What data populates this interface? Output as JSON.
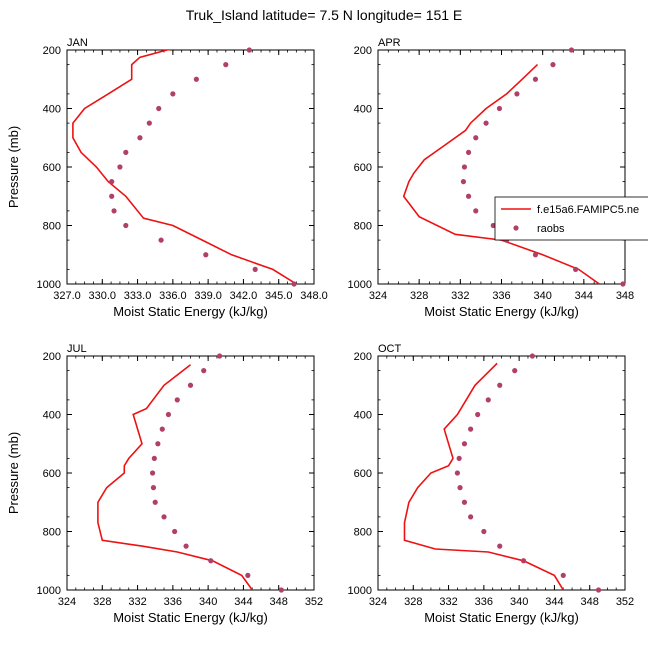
{
  "figure": {
    "title": "Truk_Island  latitude= 7.5 N longitude= 151 E",
    "xlabel": "Moist Static Energy (kJ/kg)",
    "ylabel": "Pressure (mb)",
    "legend": {
      "model_label": "f.e15a6.FAMIPC5.ne",
      "obs_label": "raobs",
      "placement": "APR panel, right edge"
    },
    "colors": {
      "model_line": "#ee1111",
      "obs_points": "#b0406a"
    }
  },
  "chart_data": [
    {
      "type": "line",
      "panel": "JAN",
      "xlim": [
        327.0,
        348.0
      ],
      "xticks": [
        "327.0",
        "330.0",
        "333.0",
        "336.0",
        "339.0",
        "342.0",
        "345.0",
        "348.0"
      ],
      "ylim": [
        1000,
        200
      ],
      "yticks": [
        "200",
        "400",
        "600",
        "800",
        "1000"
      ],
      "series": [
        {
          "name": "f.e15a6.FAMIPC5.ne",
          "style": "line",
          "x": [
            346.5,
            344.5,
            341.0,
            338.5,
            336.0,
            333.5,
            332.0,
            330.5,
            329.5,
            328.2,
            327.5,
            327.5,
            328.5,
            330.5,
            332.5,
            332.5,
            333.2,
            335.5,
            338.5
          ],
          "y": [
            1000,
            950,
            900,
            850,
            800,
            775,
            700,
            650,
            600,
            550,
            500,
            450,
            400,
            350,
            300,
            250,
            225,
            200,
            175
          ]
        },
        {
          "name": "raobs",
          "style": "points",
          "x": [
            346.3,
            343.0,
            338.8,
            335.0,
            332.0,
            331.0,
            330.8,
            330.8,
            331.5,
            332.0,
            333.2,
            334.0,
            334.8,
            336.0,
            338.0,
            340.5,
            342.5
          ],
          "y": [
            1000,
            950,
            900,
            850,
            800,
            750,
            700,
            650,
            600,
            550,
            500,
            450,
            400,
            350,
            300,
            250,
            200
          ]
        }
      ]
    },
    {
      "type": "line",
      "panel": "APR",
      "xlim": [
        324,
        348
      ],
      "xticks": [
        "324",
        "328",
        "332",
        "336",
        "340",
        "344",
        "348"
      ],
      "ylim": [
        1000,
        200
      ],
      "yticks": [
        "200",
        "400",
        "600",
        "800",
        "1000"
      ],
      "series": [
        {
          "name": "f.e15a6.FAMIPC5.ne",
          "style": "line",
          "x": [
            345.5,
            343.5,
            340.0,
            336.0,
            331.5,
            328.0,
            326.5,
            327.0,
            327.5,
            328.5,
            330.5,
            332.5,
            333.0,
            334.5,
            336.5,
            338.0,
            339.5
          ],
          "y": [
            1000,
            950,
            900,
            850,
            830,
            770,
            700,
            650,
            620,
            575,
            525,
            475,
            450,
            400,
            350,
            300,
            250
          ]
        },
        {
          "name": "raobs",
          "style": "points",
          "x": [
            347.8,
            343.2,
            339.3,
            336.5,
            335.2,
            333.5,
            332.8,
            332.3,
            332.4,
            332.8,
            333.5,
            334.5,
            335.8,
            337.5,
            339.3,
            341.0,
            342.8
          ],
          "y": [
            1000,
            950,
            900,
            850,
            800,
            750,
            700,
            650,
            600,
            550,
            500,
            450,
            400,
            350,
            300,
            250,
            200
          ]
        }
      ]
    },
    {
      "type": "line",
      "panel": "JUL",
      "xlim": [
        324,
        352
      ],
      "xticks": [
        "324",
        "328",
        "332",
        "336",
        "340",
        "344",
        "348",
        "352"
      ],
      "ylim": [
        1000,
        200
      ],
      "yticks": [
        "200",
        "400",
        "600",
        "800",
        "1000"
      ],
      "series": [
        {
          "name": "f.e15a6.FAMIPC5.ne",
          "style": "line",
          "x": [
            345.0,
            343.8,
            340.5,
            336.5,
            332.5,
            328.0,
            327.5,
            327.5,
            328.5,
            330.5,
            330.5,
            331.0,
            332.5,
            332.0,
            331.5,
            333.0,
            335.0,
            338.0
          ],
          "y": [
            1000,
            950,
            900,
            870,
            850,
            830,
            770,
            700,
            650,
            600,
            575,
            550,
            500,
            450,
            400,
            380,
            300,
            230
          ]
        },
        {
          "name": "raobs",
          "style": "points",
          "x": [
            348.3,
            344.5,
            340.3,
            337.5,
            336.2,
            335.0,
            334.0,
            333.8,
            333.7,
            333.9,
            334.3,
            334.8,
            335.5,
            336.5,
            338.0,
            339.5,
            341.3
          ],
          "y": [
            1000,
            950,
            900,
            850,
            800,
            750,
            700,
            650,
            600,
            550,
            500,
            450,
            400,
            350,
            300,
            250,
            200
          ]
        }
      ]
    },
    {
      "type": "line",
      "panel": "OCT",
      "xlim": [
        324,
        352
      ],
      "xticks": [
        "324",
        "328",
        "332",
        "336",
        "340",
        "344",
        "348",
        "352"
      ],
      "ylim": [
        1000,
        200
      ],
      "yticks": [
        "200",
        "400",
        "600",
        "800",
        "1000"
      ],
      "series": [
        {
          "name": "f.e15a6.FAMIPC5.ne",
          "style": "line",
          "x": [
            345.0,
            344.0,
            340.5,
            336.5,
            330.5,
            327.0,
            327.0,
            327.5,
            328.5,
            330.0,
            332.0,
            332.5,
            332.0,
            331.5,
            333.0,
            335.0,
            337.5
          ],
          "y": [
            1000,
            950,
            900,
            870,
            860,
            830,
            770,
            700,
            650,
            600,
            575,
            550,
            500,
            450,
            400,
            300,
            225
          ]
        },
        {
          "name": "raobs",
          "style": "points",
          "x": [
            349.0,
            345.0,
            340.5,
            337.8,
            336.0,
            334.5,
            333.8,
            333.3,
            333.0,
            333.2,
            333.8,
            334.5,
            335.3,
            336.5,
            337.8,
            339.5,
            341.5
          ],
          "y": [
            1000,
            950,
            900,
            850,
            800,
            750,
            700,
            650,
            600,
            550,
            500,
            450,
            400,
            350,
            300,
            250,
            200
          ]
        }
      ]
    }
  ]
}
